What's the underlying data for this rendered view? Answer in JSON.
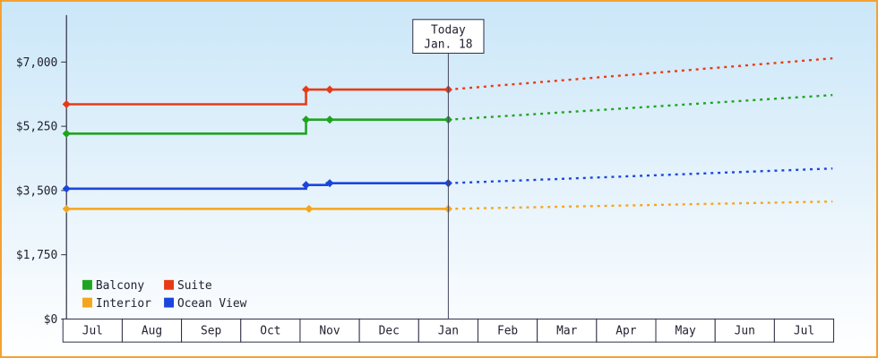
{
  "colors": {
    "border": "#f5a033",
    "axis": "#2b2b44",
    "text": "#222233",
    "month_cell_fill": "#ffffff",
    "today_box_fill": "#ffffff",
    "today_line": "#44445e"
  },
  "today": {
    "label": "Today",
    "date": "Jan. 18",
    "month_index": 6
  },
  "legend": {
    "rows": [
      [
        {
          "label": "Balcony",
          "color": "#1fa41f"
        },
        {
          "label": "Suite",
          "color": "#e83a16"
        }
      ],
      [
        {
          "label": "Interior",
          "color": "#f5a51d"
        },
        {
          "label": "Ocean View",
          "color": "#1b46dd"
        }
      ]
    ]
  },
  "chart_data": {
    "type": "line",
    "title": "",
    "unit": "USD",
    "y_axis": {
      "max": 7000,
      "ticks": [
        {
          "value": 7000,
          "label": "$7,000"
        },
        {
          "value": 5250,
          "label": "$5,250"
        },
        {
          "value": 3500,
          "label": "$3,500"
        },
        {
          "value": 1750,
          "label": "$1,750"
        },
        {
          "value": 0,
          "label": "$0"
        }
      ]
    },
    "x_axis": {
      "months": [
        "Jul",
        "Aug",
        "Sep",
        "Oct",
        "Nov",
        "Dec",
        "Jan",
        "Feb",
        "Mar",
        "Apr",
        "May",
        "Jun",
        "Jul"
      ]
    },
    "series": [
      {
        "name": "Interior",
        "color": "#f5a51d",
        "solid": [
          [
            -0.5,
            3000
          ],
          [
            6,
            3000
          ]
        ],
        "markers": [
          [
            -0.5,
            3000
          ],
          [
            3.65,
            3000
          ],
          [
            6,
            3000
          ]
        ],
        "projection": [
          [
            6,
            3000
          ],
          [
            12.48,
            3200
          ]
        ]
      },
      {
        "name": "Ocean View",
        "color": "#1b46dd",
        "solid": [
          [
            -0.5,
            3550
          ],
          [
            3.6,
            3550
          ],
          [
            3.6,
            3650
          ],
          [
            3.95,
            3650
          ],
          [
            3.95,
            3700
          ],
          [
            6,
            3700
          ]
        ],
        "markers": [
          [
            -0.5,
            3550
          ],
          [
            3.6,
            3650
          ],
          [
            4,
            3700
          ],
          [
            6,
            3700
          ]
        ],
        "projection": [
          [
            6,
            3700
          ],
          [
            12.48,
            4100
          ]
        ]
      },
      {
        "name": "Balcony",
        "color": "#1fa41f",
        "solid": [
          [
            -0.5,
            5050
          ],
          [
            3.6,
            5050
          ],
          [
            3.6,
            5430
          ],
          [
            6,
            5430
          ]
        ],
        "markers": [
          [
            -0.5,
            5050
          ],
          [
            3.6,
            5430
          ],
          [
            4,
            5430
          ],
          [
            6,
            5430
          ]
        ],
        "projection": [
          [
            6,
            5430
          ],
          [
            12.48,
            6100
          ]
        ]
      },
      {
        "name": "Suite",
        "color": "#e83a16",
        "solid": [
          [
            -0.5,
            5850
          ],
          [
            3.6,
            5850
          ],
          [
            3.6,
            6250
          ],
          [
            6,
            6250
          ]
        ],
        "markers": [
          [
            -0.5,
            5850
          ],
          [
            3.6,
            6250
          ],
          [
            4,
            6250
          ],
          [
            6,
            6250
          ]
        ],
        "projection": [
          [
            6,
            6250
          ],
          [
            12.48,
            7100
          ]
        ]
      }
    ]
  }
}
